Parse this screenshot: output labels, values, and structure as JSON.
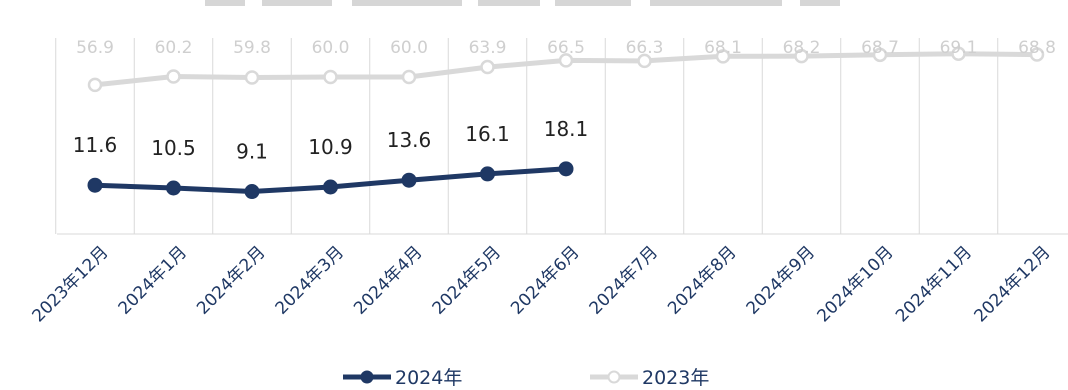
{
  "chart_data": {
    "type": "line",
    "categories": [
      "2023年12月",
      "2024年1月",
      "2024年2月",
      "2024年3月",
      "2024年4月",
      "2024年5月",
      "2024年6月",
      "2024年7月",
      "2024年8月",
      "2024年9月",
      "2024年10月",
      "2024年11月",
      "2024年12月"
    ],
    "series": [
      {
        "name": "2024年",
        "values": [
          11.6,
          10.5,
          9.1,
          10.9,
          13.6,
          16.1,
          18.1,
          null,
          null,
          null,
          null,
          null,
          null
        ],
        "color": "#1f3864"
      },
      {
        "name": "2023年",
        "values": [
          56.9,
          60.2,
          59.8,
          60.0,
          60.0,
          63.9,
          66.5,
          66.3,
          68.1,
          68.2,
          68.7,
          69.1,
          68.8
        ],
        "color": "#d9d9d9"
      }
    ],
    "legend_position": "bottom",
    "grid": "vertical"
  }
}
